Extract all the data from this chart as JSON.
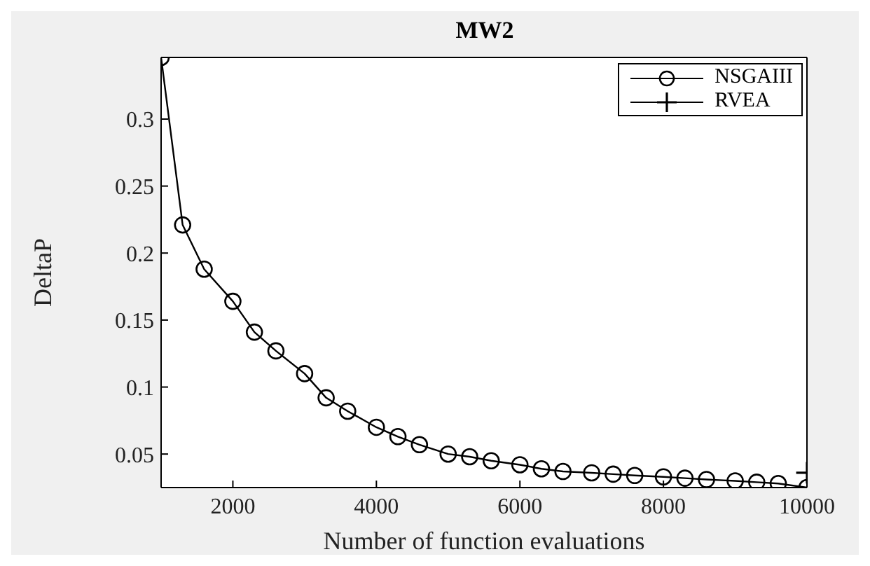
{
  "chart_data": {
    "type": "line",
    "title": "MW2",
    "xlabel": "Number of function evaluations",
    "ylabel": "DeltaP",
    "xlim": [
      1000,
      10000
    ],
    "xticks": [
      2000,
      4000,
      6000,
      8000,
      10000
    ],
    "ylim": [
      0.025,
      0.346
    ],
    "yticks": [
      0.05,
      0.1,
      0.15,
      0.2,
      0.25,
      0.3
    ],
    "grid": false,
    "legend": "top right",
    "line_style": "solid",
    "series": [
      {
        "name": "NSGAIII",
        "color": "#000000",
        "marker": "circle",
        "x": [
          1000,
          1300,
          1600,
          2000,
          2300,
          2600,
          3000,
          3300,
          3600,
          4000,
          4300,
          4600,
          5000,
          5300,
          5600,
          6000,
          6300,
          6600,
          7000,
          7300,
          7600,
          8000,
          8300,
          8600,
          9000,
          9300,
          9600,
          10000
        ],
        "values": [
          0.346,
          0.221,
          0.188,
          0.164,
          0.141,
          0.127,
          0.11,
          0.092,
          0.082,
          0.07,
          0.063,
          0.057,
          0.05,
          0.048,
          0.045,
          0.042,
          0.039,
          0.037,
          0.036,
          0.035,
          0.034,
          0.033,
          0.032,
          0.031,
          0.03,
          0.029,
          0.028,
          0.025
        ]
      },
      {
        "name": "RVEA",
        "color": "#000000",
        "marker": "cross",
        "x": [
          10000
        ],
        "values": [
          0.036
        ]
      }
    ]
  }
}
